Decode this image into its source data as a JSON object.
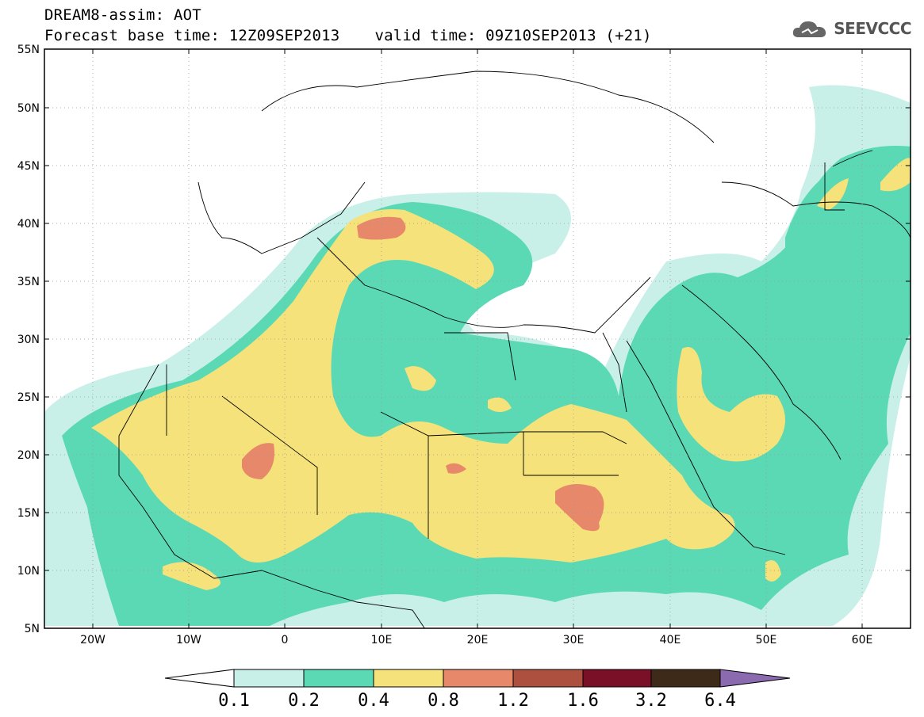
{
  "header": {
    "line1": "DREAM8-assim: AOT",
    "base_label": "Forecast base time: 12Z09SEP2013",
    "valid_label": "valid time: 09Z10SEP2013 (+21)"
  },
  "logo": {
    "text": "SEEVCCC",
    "icon": "cloud-icon"
  },
  "axes": {
    "lat_ticks": [
      "55N",
      "50N",
      "45N",
      "40N",
      "35N",
      "30N",
      "25N",
      "20N",
      "15N",
      "10N",
      "5N"
    ],
    "lon_ticks": [
      "20W",
      "10W",
      "0",
      "10E",
      "20E",
      "30E",
      "40E",
      "50E",
      "60E"
    ],
    "lat_range": [
      5,
      55
    ],
    "lon_range": [
      -25,
      65
    ]
  },
  "colorbar": {
    "labels": [
      "0.1",
      "0.2",
      "0.4",
      "0.8",
      "1.2",
      "1.6",
      "3.2",
      "6.4"
    ],
    "colors": {
      "0.1-0.2": "#c8f0e8",
      "0.2-0.4": "#5ad9b4",
      "0.4-0.8": "#f5e27a",
      "0.8-1.2": "#e8886a",
      "1.2-1.6": "#ad5040",
      "1.6-3.2": "#7a0f28",
      "3.2-6.4": "#3e2a18",
      "above": "#8b6ab0",
      "below": "#ffffff"
    }
  }
}
